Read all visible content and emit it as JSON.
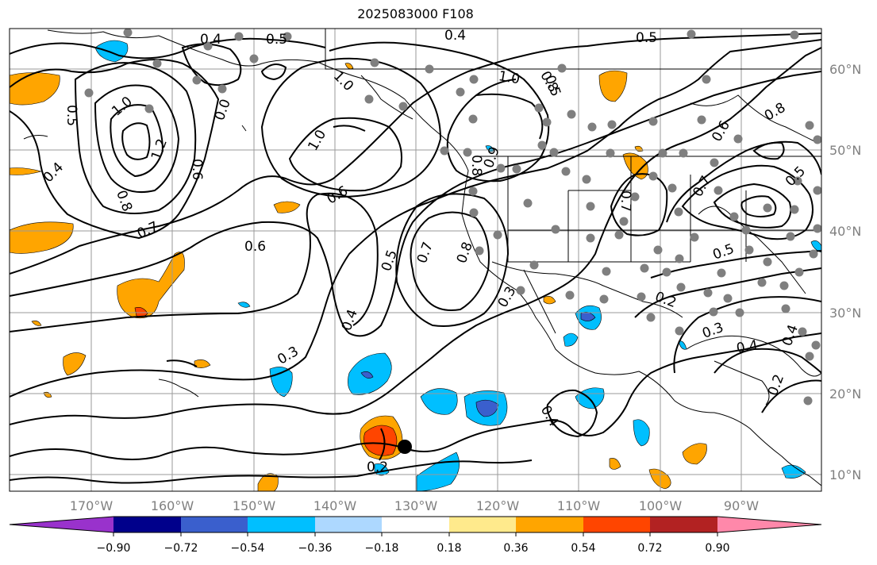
{
  "title": "2025083000 F108",
  "lat_labels": [
    "60°N",
    "50°N",
    "40°N",
    "30°N",
    "20°N",
    "10°N"
  ],
  "lon_labels": [
    "170°W",
    "160°W",
    "150°W",
    "140°W",
    "130°W",
    "120°W",
    "110°W",
    "100°W",
    "90°W"
  ],
  "colorbar": {
    "ticks": [
      "−0.90",
      "−0.72",
      "−0.54",
      "−0.36",
      "−0.18",
      "0.18",
      "0.36",
      "0.54",
      "0.72",
      "0.90"
    ],
    "colors": [
      "#9932CC",
      "#00008B",
      "#3A5FCD",
      "#00BFFF",
      "#ADD8FF",
      "#FFFFFF",
      "#FFEA8C",
      "#FFA500",
      "#FF4500",
      "#B22222",
      "#FF88AA"
    ]
  },
  "contour_labels": [
    {
      "text": "0.4"
    },
    {
      "text": "0.5"
    },
    {
      "text": "0.4"
    },
    {
      "text": "0.5"
    },
    {
      "text": "1.0"
    },
    {
      "text": "0.5"
    },
    {
      "text": "1.2"
    },
    {
      "text": "0.8"
    },
    {
      "text": "0.4"
    },
    {
      "text": "0.7"
    },
    {
      "text": "0.6"
    },
    {
      "text": "0.6"
    },
    {
      "text": "1.0"
    },
    {
      "text": "0.6"
    },
    {
      "text": "1.0"
    },
    {
      "text": "0.0"
    },
    {
      "text": "1.0"
    },
    {
      "text": "0.8"
    },
    {
      "text": "0.9"
    },
    {
      "text": "0.8"
    },
    {
      "text": "0.7"
    },
    {
      "text": "0.5"
    },
    {
      "text": "0.4"
    },
    {
      "text": "0.3"
    },
    {
      "text": "0.7"
    },
    {
      "text": "0.8"
    },
    {
      "text": "0.3"
    },
    {
      "text": "0.2"
    },
    {
      "text": "0.4"
    },
    {
      "text": "0.2"
    },
    {
      "text": "0.5"
    },
    {
      "text": "0.3"
    },
    {
      "text": "0.4"
    },
    {
      "text": "0.4"
    },
    {
      "text": "0.6"
    },
    {
      "text": "0.7"
    },
    {
      "text": "0.8"
    },
    {
      "text": "0.5"
    },
    {
      "text": "0.2"
    },
    {
      "text": "0.5"
    }
  ],
  "marker": "storm-center"
}
